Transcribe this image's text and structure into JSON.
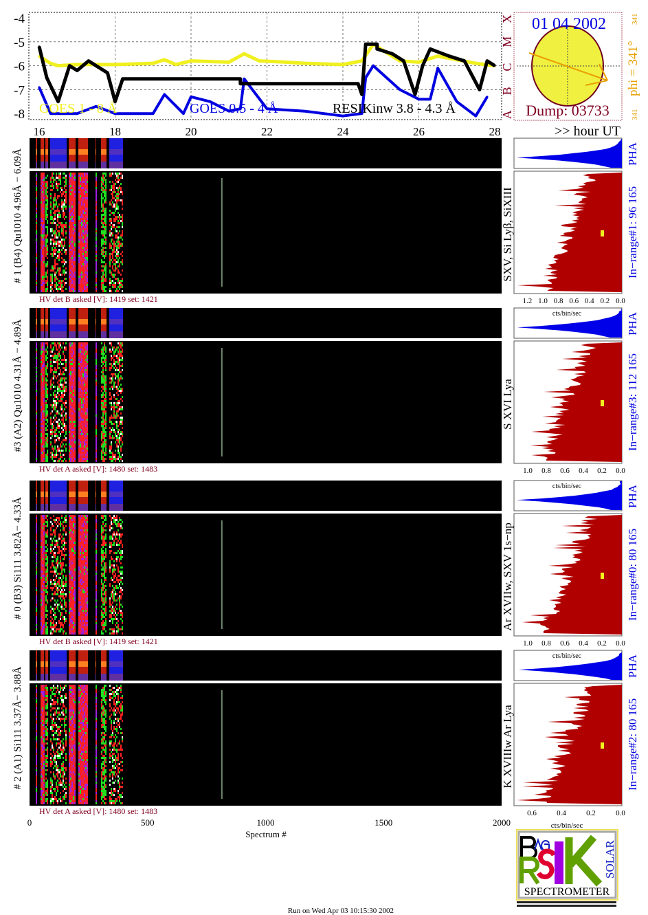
{
  "colors": {
    "goes_long": "#f0f020",
    "goes_short": "#0000e0",
    "resik": "#000000",
    "dark_red": "#800020",
    "orange": "#e8a000",
    "hist_fill": "#b00000",
    "pha_fill": "#0000e8"
  },
  "chart_data": [
    {
      "type": "line",
      "title": "",
      "xlim": [
        15.7,
        28.2
      ],
      "ylim": [
        -8.2,
        -3.8
      ],
      "x_ticks": [
        "16",
        "18",
        "20",
        "22",
        "24",
        "26",
        "28"
      ],
      "y_ticks": [
        "-4",
        "-5",
        "-6",
        "-7",
        "-8"
      ],
      "x_unit_label": ">> hour UT",
      "class_letters": [
        "A",
        "B",
        "C",
        "M",
        "X"
      ],
      "grid": true,
      "series": [
        {
          "name": "GOES 1 - 8 Å",
          "color": "#f0f020",
          "x": [
            16.0,
            16.3,
            16.5,
            17.0,
            18.0,
            19.0,
            19.3,
            19.6,
            20.0,
            21.0,
            21.4,
            21.8,
            22.5,
            23.0,
            24.0,
            24.5,
            24.8,
            25.2,
            25.5,
            26.0,
            26.5,
            27.0,
            27.5,
            28.0
          ],
          "y": [
            -5.6,
            -5.9,
            -6.0,
            -5.95,
            -5.95,
            -5.9,
            -5.75,
            -5.95,
            -5.8,
            -5.85,
            -5.5,
            -5.8,
            -5.85,
            -5.9,
            -5.95,
            -5.8,
            -5.1,
            -5.5,
            -5.8,
            -5.85,
            -5.6,
            -5.75,
            -5.9,
            -6.0
          ]
        },
        {
          "name": "GOES 0.5 - 4 Å",
          "color": "#0000e0",
          "x": [
            16.0,
            16.3,
            17.0,
            17.5,
            18.0,
            19.0,
            19.3,
            19.8,
            20.0,
            20.5,
            21.0,
            21.3,
            21.4,
            22.0,
            23.0,
            24.0,
            24.5,
            24.6,
            24.8,
            25.5,
            26.0,
            26.3,
            26.5,
            27.0,
            27.5,
            27.8
          ],
          "y": [
            -6.9,
            -8.0,
            -8.0,
            -7.7,
            -8.0,
            -8.0,
            -7.2,
            -8.0,
            -7.3,
            -7.5,
            -7.9,
            -7.8,
            -6.55,
            -7.8,
            -7.9,
            -8.1,
            -8.0,
            -6.5,
            -6.0,
            -7.0,
            -7.4,
            -7.4,
            -6.1,
            -7.5,
            -8.1,
            -7.3
          ]
        },
        {
          "name": "RESIKinw 3.8 - 4.3 Å",
          "color": "#000000",
          "x": [
            16.0,
            16.2,
            16.5,
            16.8,
            17.0,
            17.3,
            17.5,
            17.8,
            18.0,
            18.2,
            21.3,
            21.3,
            24.4,
            24.5,
            24.6,
            24.9,
            24.9,
            25.3,
            25.6,
            25.9,
            26.1,
            26.3,
            26.8,
            27.2,
            27.6,
            27.8,
            28.0
          ],
          "y": [
            -5.2,
            -6.5,
            -7.5,
            -6.0,
            -6.2,
            -5.8,
            -6.0,
            -6.3,
            -7.5,
            -6.55,
            -6.55,
            -6.75,
            -6.75,
            -7.2,
            -5.1,
            -5.1,
            -5.3,
            -5.5,
            -5.8,
            -7.2,
            -6.0,
            -5.3,
            -5.6,
            -5.8,
            -7.0,
            -5.8,
            -6.0
          ]
        }
      ]
    },
    {
      "type": "heatmap",
      "xlabel": "Spectrum #",
      "xlim": [
        0,
        2000
      ],
      "x_ticks": [
        "0",
        "500",
        "1000",
        "1500",
        "2000"
      ],
      "panels": [
        {
          "label": "# 1 (B4) Qu1010 4.96Å − 6.09Å",
          "lines": "SXV, Si Lyβ, SiXIII",
          "hv": "HV det B asked [V]:  1419 set:  1421",
          "pha": "PHA",
          "inrange": "In−range#1:  96 165",
          "hist_ticks": [
            "1.2",
            "1.0",
            "0.8",
            "0.6",
            "0.4",
            "0.2",
            "0.0"
          ],
          "hist_unit": ""
        },
        {
          "label": "#3 (A2) Qu1010  4.31Å − 4.89Å",
          "lines": "S XVI Lya",
          "hv": "HV det A asked [V]:  1480 set:  1483",
          "pha": "PHA",
          "inrange": "In−range#3:   112 165",
          "hist_ticks": [
            "1.0",
            "0.8",
            "0.6",
            "0.4",
            "0.2",
            "0.0"
          ],
          "hist_unit": "cts/bin/sec"
        },
        {
          "label": "# 0 (B3) Si111  3.82Å− 4.33Å",
          "lines": "Ar XVIIw,  SXV 1s−np",
          "hv": "HV det B asked [V]:  1419 set:  1421",
          "pha": "PHA",
          "inrange": "In−range#0:   80 165",
          "hist_ticks": [
            "1.0",
            "0.8",
            "0.6",
            "0.4",
            "0.2",
            "0.0"
          ],
          "hist_unit": "cts/bin/sec"
        },
        {
          "label": "# 2 (A1) Si111  3.37Å− 3.88Å",
          "lines": "K XVIIIw  Ar Lya",
          "hv": "HV det A asked [V]:  1480 set:  1483",
          "pha": "PHA",
          "inrange": "In−range#2:   80 165",
          "hist_ticks": [
            "0.6",
            "0.4",
            "0.2",
            "0.0"
          ],
          "hist_unit": "cts/bin/sec"
        }
      ],
      "bottom_hist_unit": "cts/bin/sec"
    }
  ],
  "sun": {
    "date": "01 04 2002",
    "dump": "Dump: 03733",
    "phi": "phi = 341°",
    "phi_sub": "341",
    "phi_small": "341"
  },
  "logo": {
    "bragg": "BRAGG",
    "resik": "RESIK",
    "solar": "SOLAR",
    "spectrometer": "SPECTROMETER"
  },
  "footer": {
    "run": "Run on Wed Apr 03 10:15:30 2002"
  }
}
